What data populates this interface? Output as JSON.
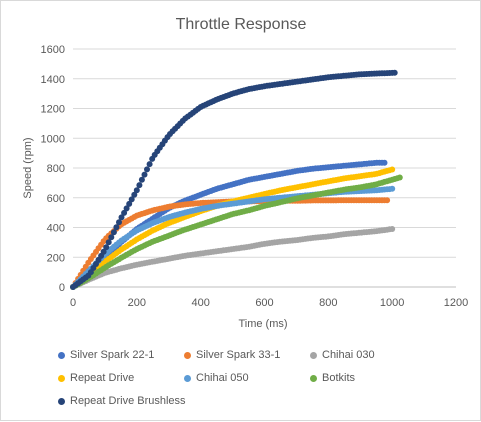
{
  "chart_data": {
    "type": "scatter",
    "title": "Throttle Response",
    "xlabel": "Time (ms)",
    "ylabel": "Speed (rpm)",
    "xlim": [
      0,
      1200
    ],
    "ylim": [
      0,
      1600
    ],
    "xticks": [
      0,
      200,
      400,
      600,
      800,
      1000,
      1200
    ],
    "yticks": [
      0,
      200,
      400,
      600,
      800,
      1000,
      1200,
      1400,
      1600
    ],
    "grid": "horizontal",
    "legend_position": "bottom",
    "series": [
      {
        "name": "Silver Spark 22-1",
        "color": "#4472c4",
        "x": [
          0,
          50,
          100,
          150,
          200,
          250,
          300,
          350,
          400,
          450,
          500,
          550,
          600,
          650,
          700,
          750,
          800,
          850,
          900,
          950,
          980
        ],
        "y": [
          0,
          90,
          200,
          300,
          390,
          460,
          530,
          580,
          620,
          660,
          690,
          720,
          740,
          760,
          780,
          795,
          805,
          815,
          825,
          835,
          835
        ]
      },
      {
        "name": "Silver Spark 33-1",
        "color": "#ed7d31",
        "x": [
          0,
          50,
          100,
          150,
          200,
          250,
          300,
          350,
          400,
          450,
          500,
          550,
          600,
          650,
          700,
          750,
          800,
          850,
          900,
          950,
          990
        ],
        "y": [
          0,
          170,
          320,
          420,
          480,
          515,
          540,
          555,
          565,
          570,
          575,
          575,
          578,
          580,
          580,
          582,
          582,
          583,
          583,
          583,
          583
        ]
      },
      {
        "name": "Chihai 030",
        "color": "#a5a5a5",
        "x": [
          0,
          50,
          100,
          150,
          200,
          250,
          300,
          350,
          400,
          450,
          500,
          550,
          600,
          650,
          700,
          750,
          800,
          850,
          900,
          950,
          1000
        ],
        "y": [
          0,
          50,
          95,
          125,
          150,
          170,
          190,
          210,
          225,
          240,
          255,
          270,
          290,
          305,
          315,
          330,
          340,
          355,
          365,
          375,
          390
        ]
      },
      {
        "name": "Repeat Drive",
        "color": "#ffc000",
        "x": [
          0,
          50,
          100,
          150,
          200,
          250,
          300,
          350,
          400,
          450,
          500,
          550,
          600,
          650,
          700,
          750,
          800,
          850,
          900,
          950,
          1000
        ],
        "y": [
          0,
          80,
          170,
          250,
          320,
          380,
          430,
          470,
          510,
          545,
          575,
          600,
          625,
          650,
          670,
          690,
          710,
          730,
          745,
          760,
          790
        ]
      },
      {
        "name": "Chihai 050",
        "color": "#5b9bd5",
        "x": [
          0,
          50,
          100,
          150,
          200,
          250,
          300,
          350,
          400,
          450,
          500,
          550,
          600,
          650,
          700,
          750,
          800,
          850,
          900,
          950,
          1000
        ],
        "y": [
          0,
          110,
          220,
          310,
          380,
          430,
          470,
          500,
          525,
          545,
          560,
          575,
          590,
          600,
          610,
          620,
          630,
          640,
          645,
          650,
          660
        ]
      },
      {
        "name": "Botkits",
        "color": "#70ad47",
        "x": [
          0,
          50,
          100,
          150,
          200,
          250,
          300,
          350,
          400,
          450,
          500,
          550,
          600,
          650,
          700,
          750,
          800,
          850,
          900,
          950,
          1030
        ],
        "y": [
          0,
          60,
          130,
          195,
          255,
          305,
          345,
          385,
          420,
          455,
          490,
          515,
          545,
          570,
          595,
          615,
          635,
          655,
          670,
          690,
          740
        ]
      },
      {
        "name": "Repeat Drive Brushless",
        "color": "#264478",
        "x": [
          0,
          50,
          100,
          150,
          200,
          250,
          300,
          350,
          400,
          450,
          500,
          550,
          600,
          650,
          700,
          750,
          800,
          850,
          900,
          950,
          1010
        ],
        "y": [
          0,
          80,
          250,
          460,
          650,
          870,
          1020,
          1130,
          1210,
          1260,
          1300,
          1330,
          1350,
          1365,
          1380,
          1395,
          1410,
          1420,
          1430,
          1435,
          1440
        ]
      }
    ]
  }
}
